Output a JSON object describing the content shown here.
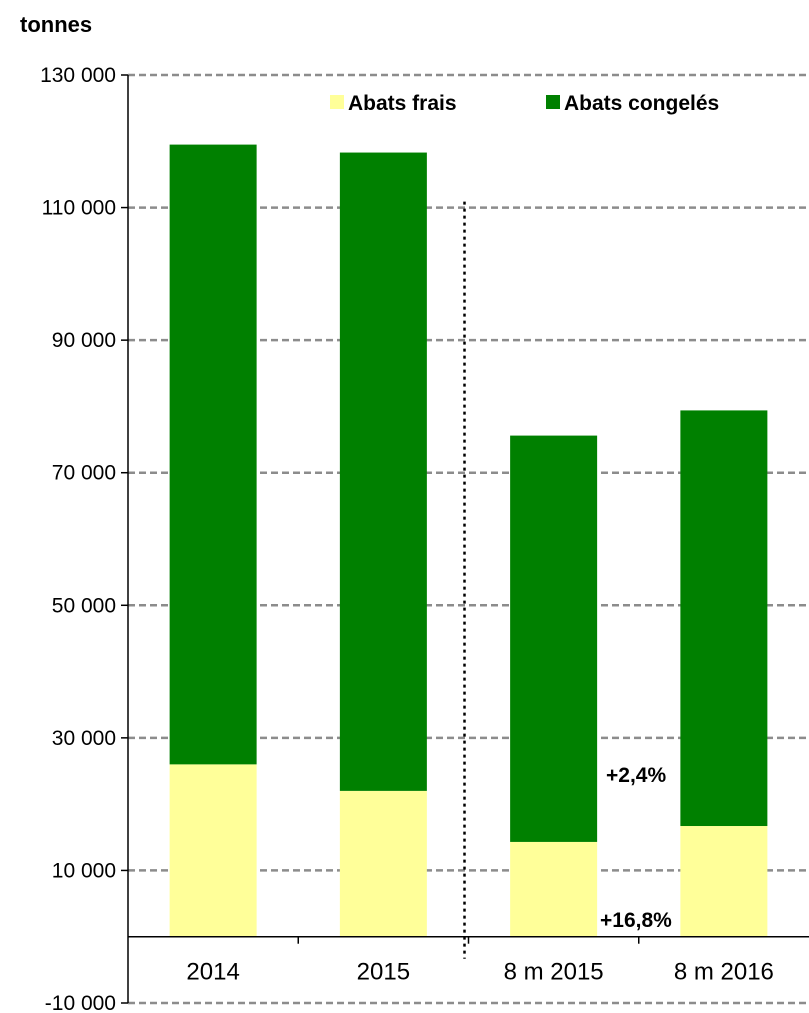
{
  "chart_data": {
    "type": "bar",
    "stacked": true,
    "unit_label": "tonnes",
    "categories": [
      "2014",
      "2015",
      "8 m 2015",
      "8 m 2016"
    ],
    "series": [
      {
        "name": "Abats frais",
        "color": "#ffff99",
        "values": [
          26000,
          22000,
          14300,
          16700
        ]
      },
      {
        "name": "Abats congelés",
        "color": "#008000",
        "values": [
          93500,
          96300,
          61300,
          62700
        ]
      }
    ],
    "ylim": [
      -10000,
      130000
    ],
    "y_ticks": [
      -10000,
      10000,
      30000,
      50000,
      70000,
      90000,
      110000,
      130000
    ],
    "y_tick_labels": [
      "-10 000",
      "10 000",
      "30 000",
      "50 000",
      "70 000",
      "90 000",
      "110 000",
      "130 000"
    ],
    "grid": true,
    "legend_position": "top-right",
    "annotations": [
      {
        "text": "+2,4%",
        "series": "Abats congelés",
        "category": "8 m 2016"
      },
      {
        "text": "+16,8%",
        "series": "Abats frais",
        "category": "8 m 2016"
      }
    ],
    "separator_between": [
      "2015",
      "8 m 2015"
    ]
  }
}
